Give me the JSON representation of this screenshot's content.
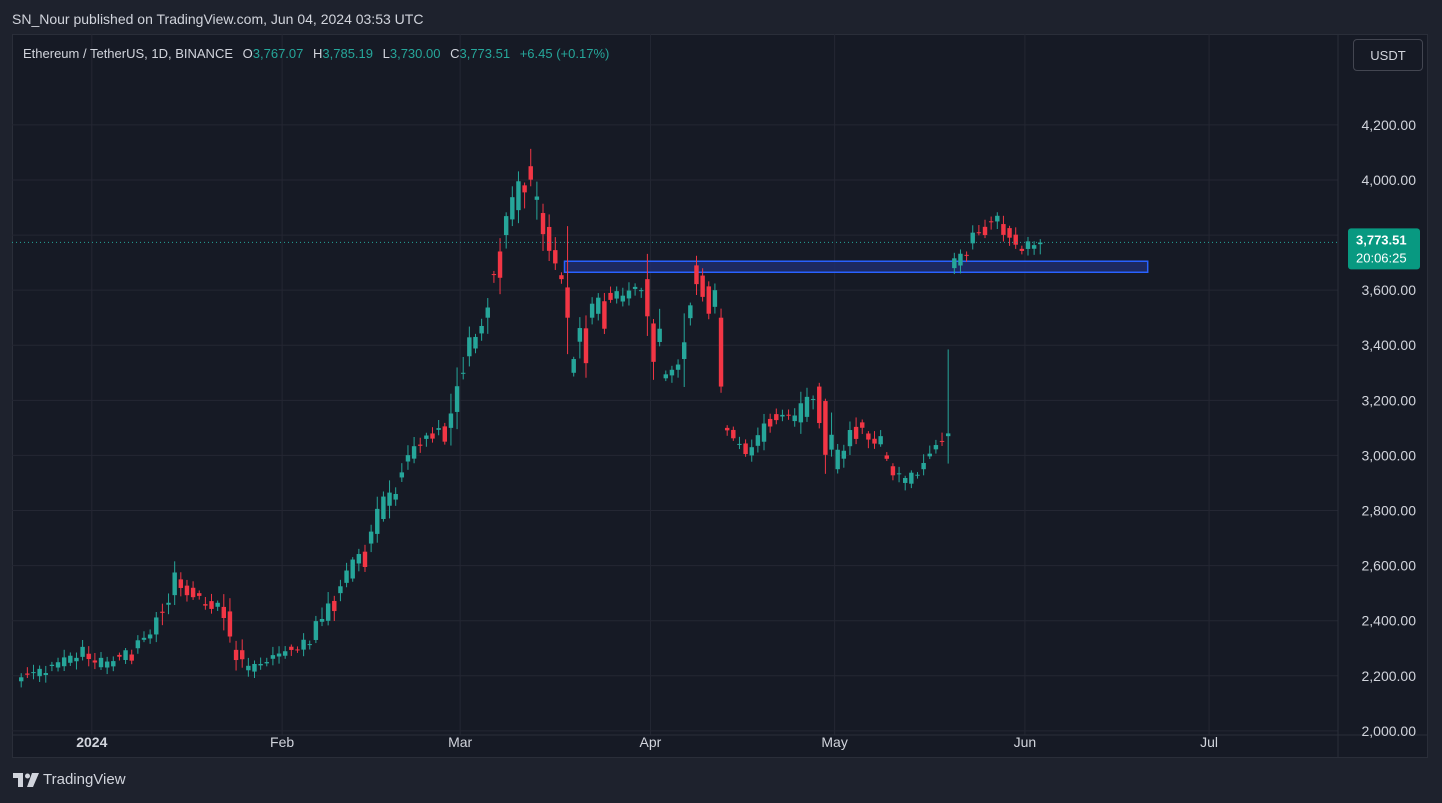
{
  "header": {
    "published": "SN_Nour published on TradingView.com, Jun 04, 2024 03:53 UTC"
  },
  "legend": {
    "symbol": "Ethereum / TetherUS, 1D, BINANCE",
    "o_label": "O",
    "o_value": "3,767.07",
    "h_label": "H",
    "h_value": "3,785.19",
    "l_label": "L",
    "l_value": "3,730.00",
    "c_label": "C",
    "c_value": "3,773.51",
    "change": "+6.45 (+0.17%)"
  },
  "unit_button": {
    "label": "USDT"
  },
  "price_tag": {
    "price": "3,773.51",
    "countdown": "20:06:25"
  },
  "footer": {
    "brand": "TradingView"
  },
  "colors": {
    "up": "#26a69a",
    "down": "#f23645",
    "zone_fill": "#1e2d6b",
    "zone_border": "#2962ff"
  },
  "chart_data": {
    "type": "candlestick",
    "y_ticks": [
      "4,200.00",
      "4,000.00",
      "3,800.00",
      "3,600.00",
      "3,400.00",
      "3,200.00",
      "3,000.00",
      "2,800.00",
      "2,600.00",
      "2,400.00",
      "2,200.00",
      "2,000.00"
    ],
    "y_tick_values": [
      4200,
      4000,
      3800,
      3600,
      3400,
      3200,
      3000,
      2800,
      2600,
      2400,
      2200,
      2000
    ],
    "ylim": [
      1985,
      4530
    ],
    "x_ticks": [
      {
        "label": "2024",
        "date": "2024-01-01",
        "bold": true
      },
      {
        "label": "Feb",
        "date": "2024-02-01",
        "bold": false
      },
      {
        "label": "Mar",
        "date": "2024-03-01",
        "bold": false
      },
      {
        "label": "Apr",
        "date": "2024-04-01",
        "bold": false
      },
      {
        "label": "May",
        "date": "2024-05-01",
        "bold": false
      },
      {
        "label": "Jun",
        "date": "2024-06-01",
        "bold": false
      },
      {
        "label": "Jul",
        "date": "2024-07-01",
        "bold": false
      }
    ],
    "x_start": "2023-12-19",
    "x_end": "2024-07-22",
    "zone": {
      "from": "2024-03-18",
      "to": "2024-06-21",
      "low": 3665,
      "high": 3705
    },
    "last_price": 3773.51,
    "anchors": [
      [
        "2023-12-20",
        2180,
        2250
      ],
      [
        "2023-12-26",
        2230,
        2330
      ],
      [
        "2023-12-31",
        2280,
        2300
      ],
      [
        "2024-01-03",
        2230,
        2210
      ],
      [
        "2024-01-08",
        2300,
        2350
      ],
      [
        "2024-01-11",
        2350,
        2600
      ],
      [
        "2024-01-15",
        2550,
        2520
      ],
      [
        "2024-01-19",
        2460,
        2480
      ],
      [
        "2024-01-22",
        2450,
        2300
      ],
      [
        "2024-01-26",
        2220,
        2280
      ],
      [
        "2024-01-31",
        2270,
        2300
      ],
      [
        "2024-02-06",
        2330,
        2370
      ],
      [
        "2024-02-10",
        2500,
        2510
      ],
      [
        "2024-02-15",
        2680,
        2800
      ],
      [
        "2024-02-20",
        2920,
        3010
      ],
      [
        "2024-02-24",
        3060,
        3000
      ],
      [
        "2024-02-28",
        3100,
        3240
      ],
      [
        "2024-03-02",
        3360,
        3440
      ],
      [
        "2024-03-05",
        3500,
        3490
      ],
      [
        "2024-03-08",
        3800,
        3860
      ],
      [
        "2024-03-12",
        4050,
        4000
      ],
      [
        "2024-03-14",
        3880,
        3670
      ],
      [
        "2024-03-18",
        3610,
        3500
      ],
      [
        "2024-03-19",
        3300,
        3170
      ],
      [
        "2024-03-22",
        3500,
        3330
      ],
      [
        "2024-03-25",
        3590,
        3590
      ],
      [
        "2024-03-28",
        3570,
        3560
      ],
      [
        "2024-03-31",
        3640,
        3640
      ],
      [
        "2024-04-03",
        3280,
        3310
      ],
      [
        "2024-04-06",
        3350,
        3400
      ],
      [
        "2024-04-08",
        3690,
        3700
      ],
      [
        "2024-04-12",
        3500,
        3250
      ],
      [
        "2024-04-13",
        3100,
        3010
      ],
      [
        "2024-04-17",
        3000,
        3060
      ],
      [
        "2024-04-21",
        3150,
        3170
      ],
      [
        "2024-04-25",
        3120,
        3160
      ],
      [
        "2024-04-28",
        3250,
        3200
      ],
      [
        "2024-05-01",
        2950,
        3000
      ],
      [
        "2024-05-05",
        3120,
        3140
      ],
      [
        "2024-05-09",
        3000,
        2970
      ],
      [
        "2024-05-12",
        2900,
        2910
      ],
      [
        "2024-05-15",
        2950,
        3030
      ],
      [
        "2024-05-19",
        3070,
        3080
      ],
      [
        "2024-05-20",
        3680,
        3680
      ],
      [
        "2024-05-23",
        3770,
        3750
      ],
      [
        "2024-05-26",
        3850,
        3900
      ],
      [
        "2024-05-28",
        3840,
        3780
      ],
      [
        "2024-05-31",
        3750,
        3760
      ],
      [
        "2024-06-03",
        3767,
        3773
      ]
    ]
  }
}
